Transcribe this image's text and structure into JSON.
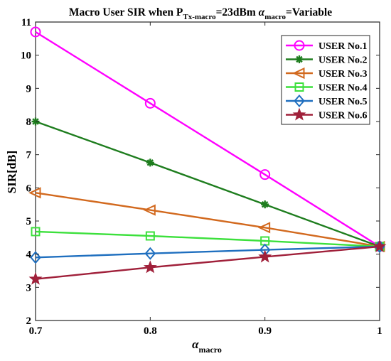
{
  "chart_data": {
    "type": "line",
    "title": {
      "main": "Macro User SIR when P",
      "sub1": "Tx-macro",
      "mid": "=23dBm ",
      "alpha": "α",
      "sub2": "macro",
      "end": "=Variable"
    },
    "xlabel": {
      "main": "α",
      "sub": "macro"
    },
    "ylabel": "SIR[dB]",
    "x": [
      0.7,
      0.8,
      0.9,
      1
    ],
    "xlim": [
      0.7,
      1
    ],
    "ylim": [
      2,
      11
    ],
    "xticks": [
      "0.7",
      "0.8",
      "0.9",
      "1"
    ],
    "yticks": [
      "2",
      "3",
      "4",
      "5",
      "6",
      "7",
      "8",
      "9",
      "10",
      "11"
    ],
    "grid": false,
    "legend_position": "top-right",
    "series": [
      {
        "name": "USER No.1",
        "values": [
          10.7,
          8.55,
          6.4,
          4.23
        ],
        "color": "#ff00ff",
        "marker": "circle"
      },
      {
        "name": "USER No.2",
        "values": [
          8.0,
          6.76,
          5.5,
          4.23
        ],
        "color": "#1e7d1e",
        "marker": "asterisk"
      },
      {
        "name": "USER No.3",
        "values": [
          5.85,
          5.33,
          4.8,
          4.23
        ],
        "color": "#d2691e",
        "marker": "triangle-left"
      },
      {
        "name": "USER No.4",
        "values": [
          4.68,
          4.55,
          4.4,
          4.23
        ],
        "color": "#3ce03c",
        "marker": "square"
      },
      {
        "name": "USER No.5",
        "values": [
          3.9,
          4.02,
          4.13,
          4.23
        ],
        "color": "#1f6fbf",
        "marker": "diamond"
      },
      {
        "name": "USER No.6",
        "values": [
          3.25,
          3.6,
          3.92,
          4.23
        ],
        "color": "#a0203a",
        "marker": "star"
      }
    ]
  }
}
